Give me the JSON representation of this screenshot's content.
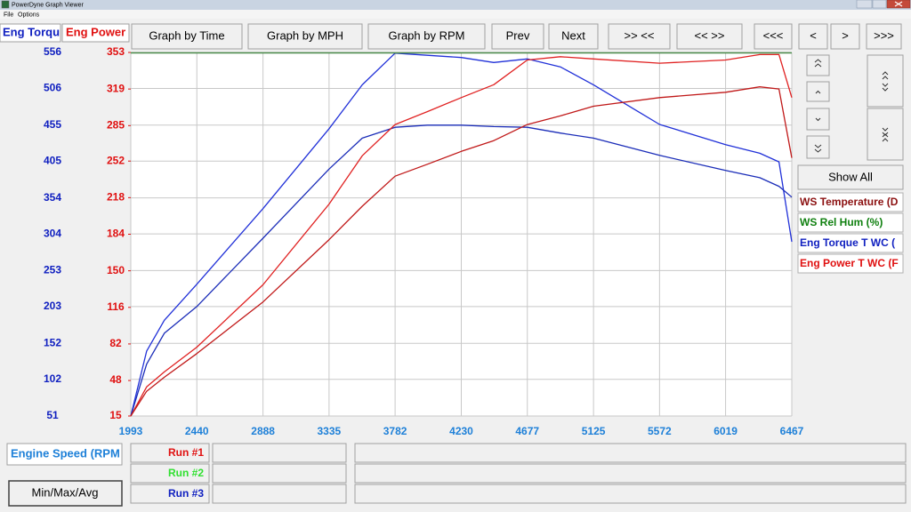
{
  "window": {
    "title": "PowerDyne Graph Viewer"
  },
  "menu": [
    "File",
    "Options"
  ],
  "axis_tabs": [
    {
      "label": "Eng Torqu",
      "color": "#1020c0"
    },
    {
      "label": "Eng Power",
      "color": "#e01010"
    }
  ],
  "toolbar": [
    "Graph by Time",
    "Graph by MPH",
    "Graph by RPM",
    "Prev",
    "Next",
    ">> <<",
    "<< >>",
    "<<<",
    "<",
    ">",
    ">>>"
  ],
  "side_panel": {
    "show_all": "Show All",
    "legend": [
      {
        "label": "WS Temperature (D",
        "color": "#8b1010"
      },
      {
        "label": "WS Rel Hum (%)",
        "color": "#108010"
      },
      {
        "label": "Eng Torque T WC (",
        "color": "#1020c0"
      },
      {
        "label": "Eng Power T WC (F",
        "color": "#e01010"
      }
    ]
  },
  "bottom": {
    "x_channel": "Engine Speed (RPM",
    "button": "Min/Max/Avg",
    "runs": [
      {
        "label": "Run #1",
        "color": "#e01010"
      },
      {
        "label": "Run #2",
        "color": "#30e030"
      },
      {
        "label": "Run #3",
        "color": "#1020c0"
      }
    ]
  },
  "chart_data": {
    "type": "line",
    "x": [
      1993,
      2100,
      2220,
      2440,
      2888,
      3335,
      3560,
      3782,
      4000,
      4230,
      4450,
      4677,
      4900,
      5125,
      5572,
      6019,
      6250,
      6380,
      6467
    ],
    "xlim": [
      1993,
      6467
    ],
    "xticks": [
      1993,
      2440,
      2888,
      3335,
      3782,
      4230,
      4677,
      5125,
      5572,
      6019,
      6467
    ],
    "ylim": [
      51,
      556
    ],
    "yticks": [
      51,
      102,
      152,
      203,
      253,
      304,
      354,
      405,
      455,
      506,
      556
    ],
    "y2lim": [
      15,
      353
    ],
    "y2ticks": [
      15,
      48,
      82,
      116,
      150,
      184,
      218,
      252,
      285,
      319,
      353
    ],
    "grid": true,
    "tick_colors": {
      "x": "#1e80d8",
      "y": "#1020c0",
      "y2": "#e01010"
    },
    "series": [
      {
        "color": "#2030d8",
        "axis": "y",
        "values": [
          51,
          141,
          184,
          234,
          339,
          450,
          511,
          555,
          552,
          549,
          542,
          547,
          536,
          511,
          456,
          428,
          416,
          404,
          293
        ]
      },
      {
        "color": "#1a2cb8",
        "axis": "y",
        "values": [
          51,
          123,
          166,
          203,
          298,
          394,
          437,
          452,
          455,
          455,
          453,
          452,
          444,
          437,
          413,
          392,
          382,
          370,
          355
        ]
      },
      {
        "color": "#e02020",
        "axis": "y2",
        "values": [
          15,
          42,
          56,
          79,
          137,
          212,
          257,
          286,
          298,
          311,
          323,
          346,
          349,
          347,
          343,
          346,
          351,
          351,
          311
        ]
      },
      {
        "color": "#c01818",
        "axis": "y2",
        "values": [
          15,
          38,
          51,
          73,
          121,
          179,
          210,
          238,
          249,
          261,
          271,
          286,
          294,
          303,
          311,
          316,
          321,
          319,
          255
        ]
      }
    ]
  }
}
